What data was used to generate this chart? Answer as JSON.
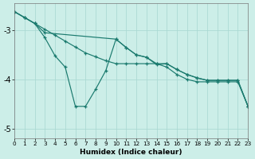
{
  "xlabel": "Humidex (Indice chaleur)",
  "bg_color": "#cceee8",
  "grid_color": "#aad8d2",
  "line_color": "#1a7a6e",
  "xlim": [
    0,
    23
  ],
  "ylim": [
    -5.2,
    -2.45
  ],
  "yticks": [
    -5,
    -4,
    -3
  ],
  "xticks": [
    0,
    1,
    2,
    3,
    4,
    5,
    6,
    7,
    8,
    9,
    10,
    11,
    12,
    13,
    14,
    15,
    16,
    17,
    18,
    19,
    20,
    21,
    22,
    23
  ],
  "s1x": [
    0,
    1,
    2,
    3,
    4,
    5,
    6,
    7,
    8,
    9,
    10,
    11,
    12,
    13,
    14,
    15,
    16,
    17,
    18,
    19,
    20,
    21,
    22,
    23
  ],
  "s1y": [
    -2.62,
    -2.74,
    -2.86,
    -2.98,
    -3.1,
    -3.22,
    -3.34,
    -3.46,
    -3.54,
    -3.62,
    -3.68,
    -3.68,
    -3.68,
    -3.68,
    -3.68,
    -3.68,
    -3.8,
    -3.9,
    -3.97,
    -4.02,
    -4.02,
    -4.02,
    -4.02,
    -4.55
  ],
  "s2x": [
    0,
    1,
    2,
    3,
    10,
    11,
    12,
    13,
    14,
    15,
    16,
    17,
    18,
    19,
    20,
    21,
    22,
    23
  ],
  "s2y": [
    -2.62,
    -2.74,
    -2.86,
    -3.05,
    -3.18,
    -3.35,
    -3.5,
    -3.55,
    -3.7,
    -3.68,
    -3.8,
    -3.9,
    -3.97,
    -4.02,
    -4.02,
    -4.02,
    -4.02,
    -4.55
  ],
  "s3x": [
    0,
    1,
    2,
    3,
    4,
    5,
    6,
    7,
    8,
    9,
    10,
    11,
    12,
    13,
    14,
    15,
    16,
    17,
    18,
    19,
    20,
    21,
    22,
    23
  ],
  "s3y": [
    -2.62,
    -2.74,
    -2.86,
    -3.15,
    -3.52,
    -3.75,
    -4.55,
    -4.55,
    -4.2,
    -3.82,
    -3.18,
    -3.35,
    -3.5,
    -3.55,
    -3.68,
    -3.75,
    -3.9,
    -4.0,
    -4.05,
    -4.05,
    -4.05,
    -4.05,
    -4.05,
    -4.55
  ]
}
